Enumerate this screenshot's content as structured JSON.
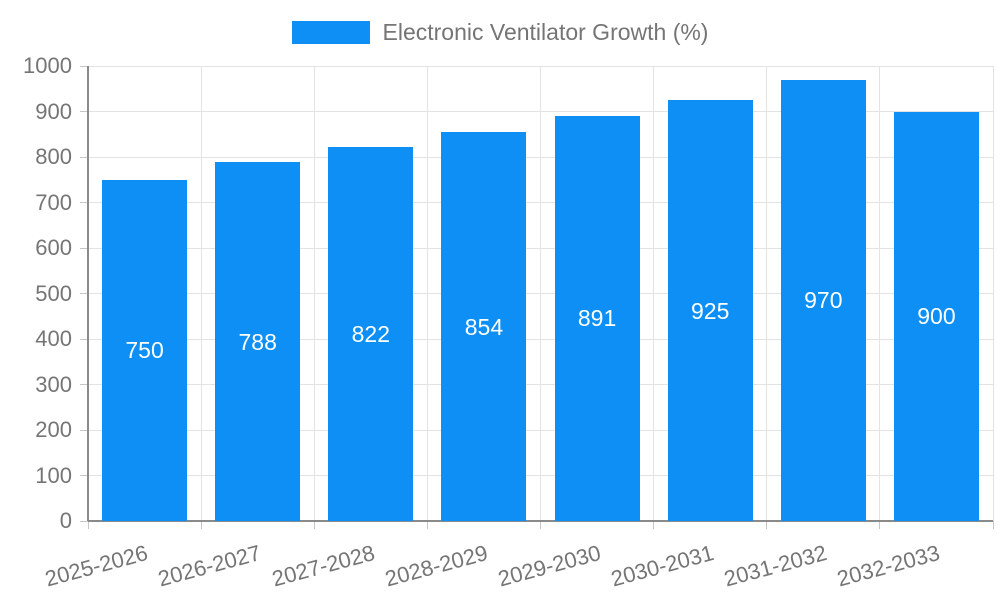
{
  "chart_data": {
    "type": "bar",
    "title": "",
    "xlabel": "",
    "ylabel": "",
    "categories": [
      "2025-2026",
      "2026-2027",
      "2027-2028",
      "2028-2029",
      "2029-2030",
      "2030-2031",
      "2031-2032",
      "2032-2033"
    ],
    "series": [
      {
        "name": "Electronic Ventilator Growth (%)",
        "color": "#0d8ff5",
        "values": [
          750,
          788,
          822,
          854,
          891,
          925,
          970,
          900
        ]
      }
    ],
    "value_labels_shown": true,
    "value_label_position": "inside-middle",
    "ylim": [
      0,
      1000
    ],
    "y_ticks": [
      0,
      100,
      200,
      300,
      400,
      500,
      600,
      700,
      800,
      900,
      1000
    ],
    "grid": "horizontal and vertical light-gray gridlines",
    "legend_position": "top-center",
    "x_tick_label_rotation_deg": -15
  },
  "colors": {
    "background": "#ffffff",
    "bar": "#0d8ff5",
    "axis_line": "#8a8a8a",
    "tick": "#c6c6c6",
    "gridline": "#e3e3e3",
    "axis_text": "#757575",
    "value_label_text": "#ffffff",
    "legend_text": "#757575"
  }
}
